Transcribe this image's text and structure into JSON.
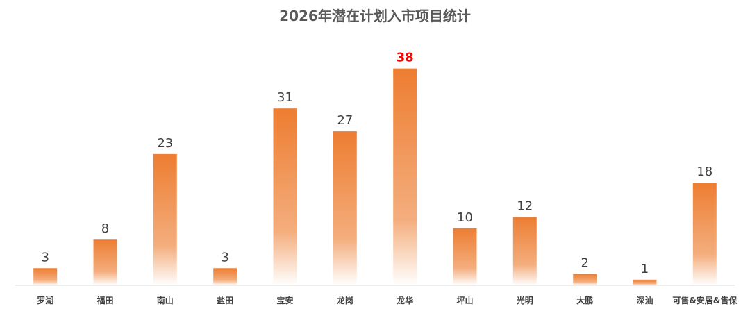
{
  "chart_data": {
    "type": "bar",
    "title": "2026年潜在计划入市项目统计",
    "categories": [
      "罗湖",
      "福田",
      "南山",
      "盐田",
      "宝安",
      "龙岗",
      "龙华",
      "坪山",
      "光明",
      "大鹏",
      "深汕",
      "可售&安居&售保"
    ],
    "values": [
      3,
      8,
      23,
      3,
      31,
      27,
      38,
      10,
      12,
      2,
      1,
      18
    ],
    "highlight_index": 6,
    "colors": {
      "bar_top": "#ED7D31",
      "bar_bottom": "#FFFFFF",
      "highlight_label": "#FF0000",
      "axis": "#D9D9D9"
    },
    "xlabel": "",
    "ylabel": "",
    "grid": false,
    "legend": "none"
  }
}
